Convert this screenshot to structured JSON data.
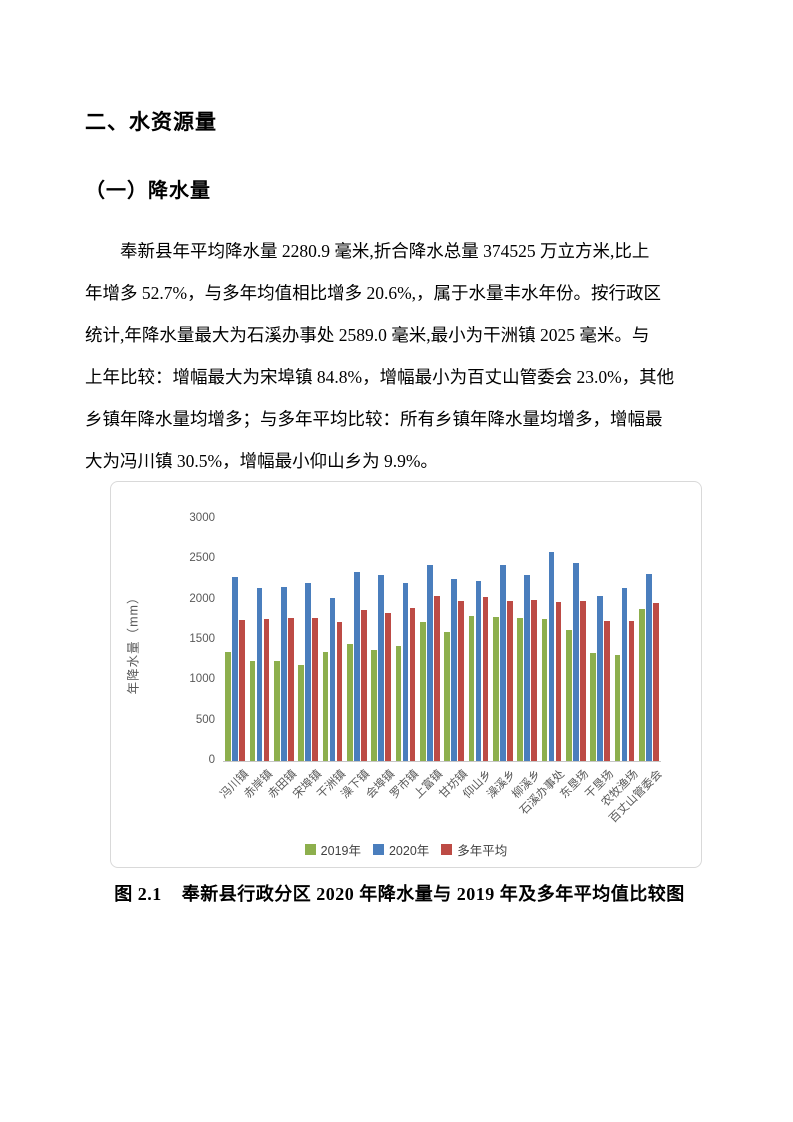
{
  "page": {
    "heading1": "二、水资源量",
    "heading2": "（一）降水量",
    "paragraph_lines": [
      "奉新县年平均降水量 2280.9 毫米,折合降水总量 374525 万立方米,比上",
      "年增多 52.7%，与多年均值相比增多 20.6%,，属于水量丰水年份。按行政区",
      "统计,年降水量最大为石溪办事处 2589.0 毫米,最小为干洲镇 2025 毫米。与",
      "上年比较：增幅最大为宋埠镇 84.8%，增幅最小为百丈山管委会 23.0%，其他",
      "乡镇年降水量均增多；与多年平均比较：所有乡镇年降水量均增多，增幅最",
      "大为冯川镇 30.5%，增幅最小仰山乡为 9.9%。"
    ],
    "figure_caption": "图 2.1    奉新县行政分区 2020 年降水量与 2019 年及多年平均值比较图"
  },
  "chart_data": {
    "type": "bar",
    "title": "",
    "xlabel": "",
    "ylabel": "年降水量（mm）",
    "ylim": [
      0,
      3000
    ],
    "yticks": [
      0,
      500,
      1000,
      1500,
      2000,
      2500,
      3000
    ],
    "grid": false,
    "legend_position": "bottom",
    "categories": [
      "冯川镇",
      "赤岸镇",
      "赤田镇",
      "宋埠镇",
      "干洲镇",
      "澡下镇",
      "会埠镇",
      "罗市镇",
      "上富镇",
      "甘坊镇",
      "仰山乡",
      "澡溪乡",
      "柳溪乡",
      "石溪办事处",
      "东垦场",
      "干垦场",
      "农牧渔场",
      "百丈山管委会"
    ],
    "series": [
      {
        "name": "2019年",
        "color": "#8DAF4D",
        "values": [
          1350,
          1235,
          1240,
          1195,
          1350,
          1450,
          1380,
          1420,
          1720,
          1600,
          1795,
          1785,
          1775,
          1760,
          1630,
          1340,
          1320,
          1880
        ]
      },
      {
        "name": "2020年",
        "color": "#4A7EBD",
        "values": [
          2285,
          2140,
          2155,
          2210,
          2025,
          2340,
          2310,
          2205,
          2435,
          2255,
          2235,
          2430,
          2310,
          2589,
          2450,
          2045,
          2150,
          2315
        ]
      },
      {
        "name": "多年平均",
        "color": "#BD4B45",
        "values": [
          1750,
          1765,
          1775,
          1770,
          1725,
          1870,
          1835,
          1895,
          2040,
          1985,
          2035,
          1980,
          1990,
          1975,
          1985,
          1740,
          1735,
          1965
        ]
      }
    ]
  }
}
